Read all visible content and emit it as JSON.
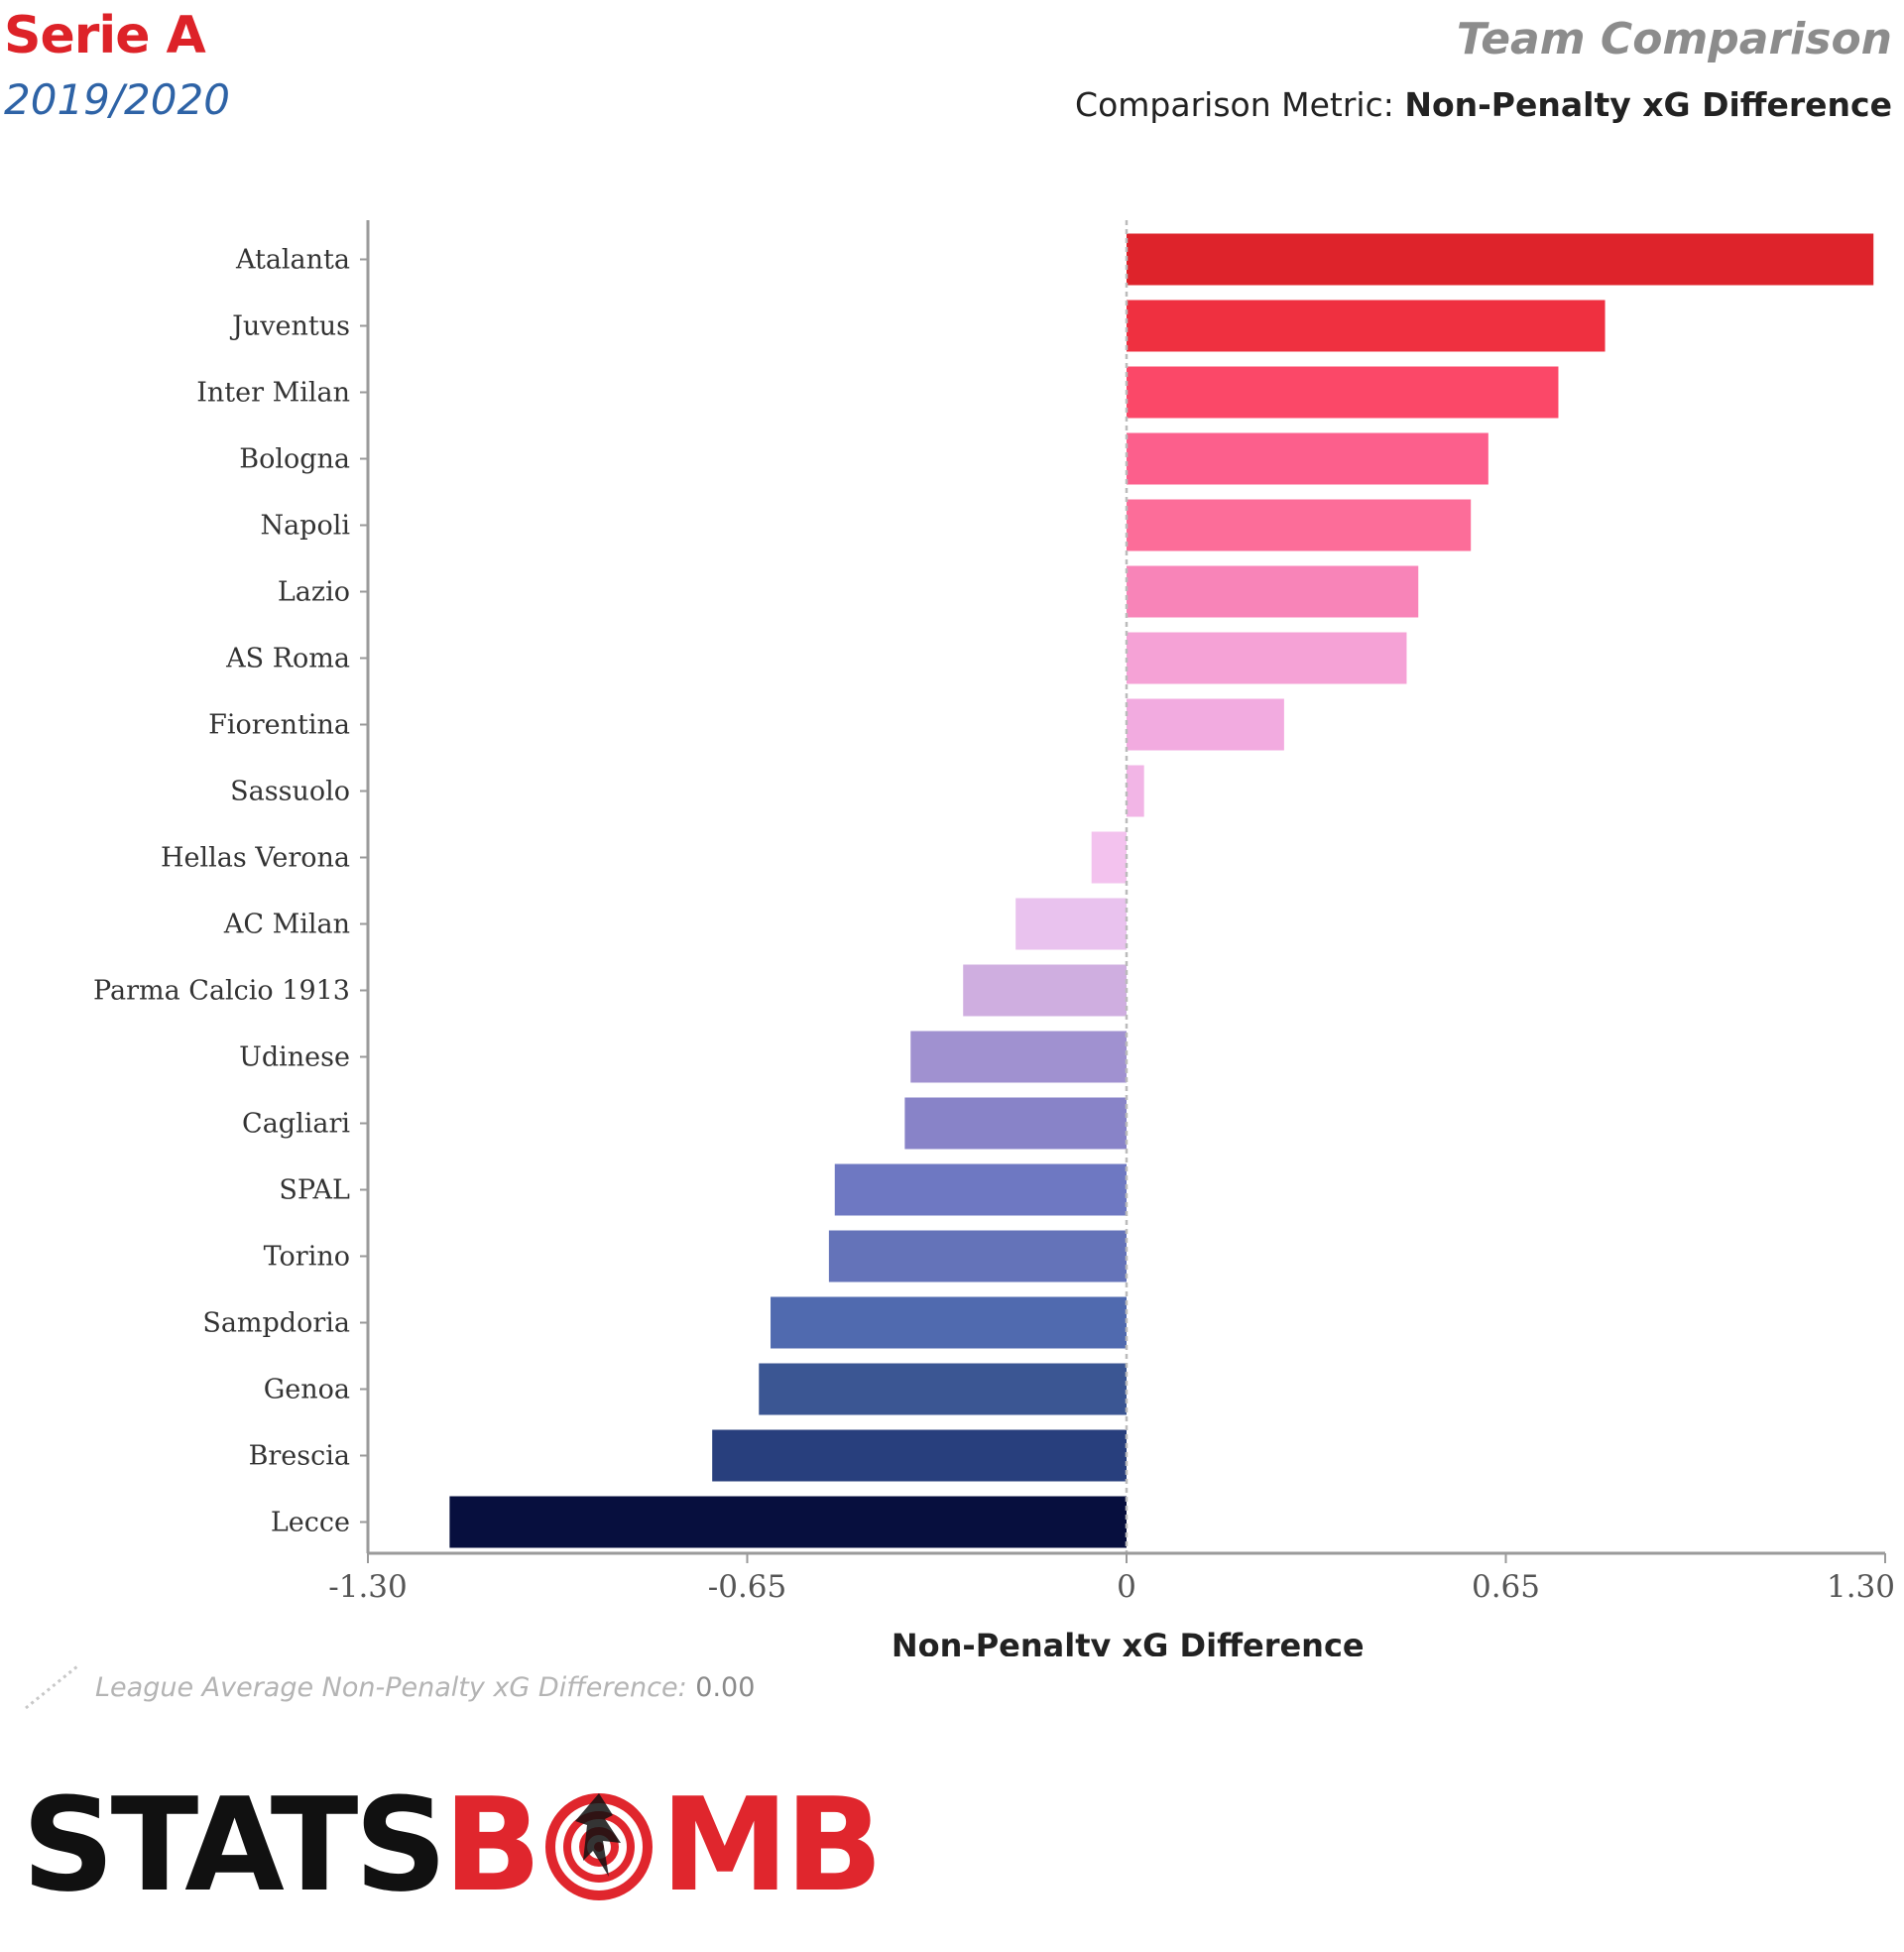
{
  "header": {
    "league": "Serie A",
    "season": "2019/2020",
    "title": "Team Comparison",
    "metric_prefix": "Comparison Metric: ",
    "metric_name": "Non-Penalty xG Difference"
  },
  "footer": {
    "avg_label": "League Average Non-Penalty xG Difference: ",
    "avg_value": "0.00",
    "logo_left": "STATS",
    "logo_b": "B",
    "logo_right": "MB"
  },
  "chart_data": {
    "type": "bar",
    "orientation": "horizontal",
    "xlabel": "Non-Penalty xG Difference",
    "xlim": [
      -1.3,
      1.3
    ],
    "xticks": [
      -1.3,
      -0.65,
      0,
      0.65,
      1.3
    ],
    "xtick_labels": [
      "-1.30",
      "-0.65",
      "0",
      "0.65",
      "1.30"
    ],
    "reference_line": 0.0,
    "categories": [
      "Atalanta",
      "Juventus",
      "Inter Milan",
      "Bologna",
      "Napoli",
      "Lazio",
      "AS Roma",
      "Fiorentina",
      "Sassuolo",
      "Hellas Verona",
      "AC Milan",
      "Parma Calcio 1913",
      "Udinese",
      "Cagliari",
      "SPAL",
      "Torino",
      "Sampdoria",
      "Genoa",
      "Brescia",
      "Lecce"
    ],
    "values": [
      1.28,
      0.82,
      0.74,
      0.62,
      0.59,
      0.5,
      0.48,
      0.27,
      0.03,
      -0.06,
      -0.19,
      -0.28,
      -0.37,
      -0.38,
      -0.5,
      -0.51,
      -0.61,
      -0.63,
      -0.71,
      -1.16
    ],
    "colors": [
      "#de232b",
      "#ef3040",
      "#fb4868",
      "#fc5f8c",
      "#fc6d99",
      "#f884b8",
      "#f5a2d6",
      "#f2abe0",
      "#f2b5e6",
      "#f3c2ee",
      "#e9c2ee",
      "#cfaee0",
      "#a091d0",
      "#8883c8",
      "#6e78c2",
      "#6473b9",
      "#506aaf",
      "#3b5693",
      "#283f7d",
      "#070f3e"
    ]
  }
}
